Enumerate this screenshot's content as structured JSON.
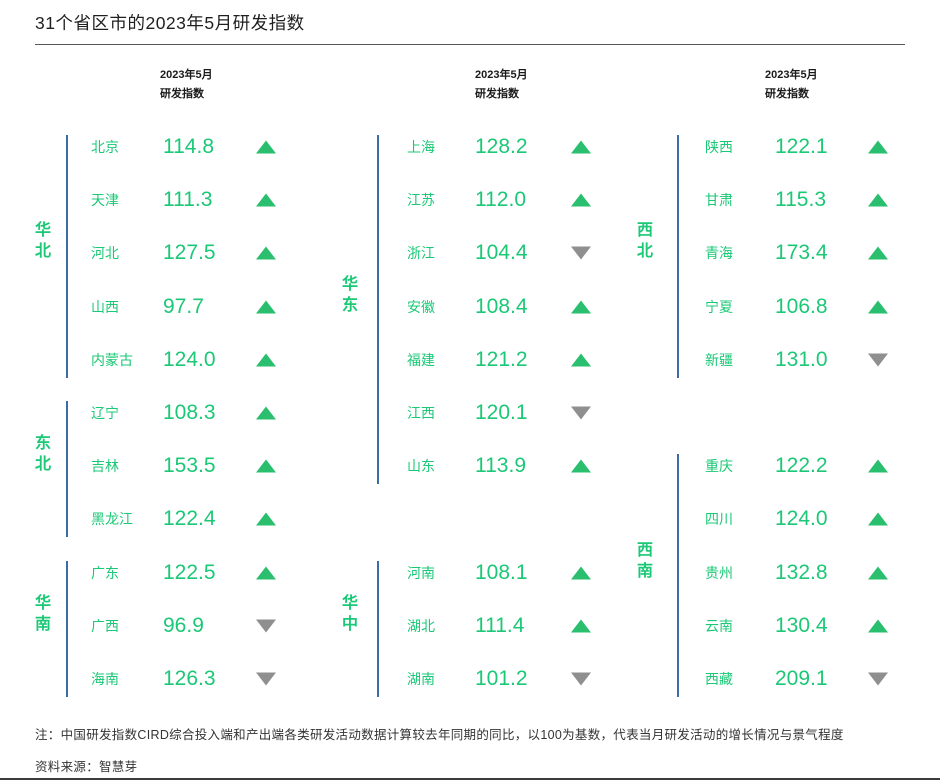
{
  "title": "31个省区市的2023年5月研发指数",
  "column_header": {
    "line1": "2023年5月",
    "line2": "研发指数"
  },
  "note": "注：中国研发指数CIRD综合投入端和产出端各类研发活动数据计算较去年同期的同比，以100为基数，代表当月研发活动的增长情况与景气程度",
  "source": "资料来源：智慧芽",
  "colors": {
    "green": "#1bc876",
    "up_arrow": "#2abf6e",
    "down_arrow": "#8f8f8f",
    "divider": "#3a6ca8"
  },
  "chart_data": {
    "type": "table",
    "title": "31个省区市的2023年5月研发指数",
    "value_column_header": "2023年5月研发指数",
    "trend_encoding": {
      "up": "绿色上三角",
      "down": "灰色下三角"
    },
    "columns": [
      {
        "groups": [
          {
            "region": "华北",
            "rows": [
              {
                "province": "北京",
                "value": "114.8",
                "trend": "up"
              },
              {
                "province": "天津",
                "value": "111.3",
                "trend": "up"
              },
              {
                "province": "河北",
                "value": "127.5",
                "trend": "up"
              },
              {
                "province": "山西",
                "value": "97.7",
                "trend": "up"
              },
              {
                "province": "内蒙古",
                "value": "124.0",
                "trend": "up"
              }
            ]
          },
          {
            "region": "东北",
            "rows": [
              {
                "province": "辽宁",
                "value": "108.3",
                "trend": "up"
              },
              {
                "province": "吉林",
                "value": "153.5",
                "trend": "up"
              },
              {
                "province": "黑龙江",
                "value": "122.4",
                "trend": "up"
              }
            ]
          },
          {
            "region": "华南",
            "rows": [
              {
                "province": "广东",
                "value": "122.5",
                "trend": "up"
              },
              {
                "province": "广西",
                "value": "96.9",
                "trend": "down"
              },
              {
                "province": "海南",
                "value": "126.3",
                "trend": "down"
              }
            ]
          }
        ]
      },
      {
        "groups": [
          {
            "region": "华东",
            "rows": [
              {
                "province": "上海",
                "value": "128.2",
                "trend": "up"
              },
              {
                "province": "江苏",
                "value": "112.0",
                "trend": "up"
              },
              {
                "province": "浙江",
                "value": "104.4",
                "trend": "down"
              },
              {
                "province": "安徽",
                "value": "108.4",
                "trend": "up"
              },
              {
                "province": "福建",
                "value": "121.2",
                "trend": "up"
              },
              {
                "province": "江西",
                "value": "120.1",
                "trend": "down"
              },
              {
                "province": "山东",
                "value": "113.9",
                "trend": "up"
              }
            ]
          },
          {
            "region": "华中",
            "rows": [
              {
                "province": "河南",
                "value": "108.1",
                "trend": "up"
              },
              {
                "province": "湖北",
                "value": "111.4",
                "trend": "up"
              },
              {
                "province": "湖南",
                "value": "101.2",
                "trend": "down"
              }
            ]
          }
        ]
      },
      {
        "groups": [
          {
            "region": "西北",
            "rows": [
              {
                "province": "陕西",
                "value": "122.1",
                "trend": "up"
              },
              {
                "province": "甘肃",
                "value": "115.3",
                "trend": "up"
              },
              {
                "province": "青海",
                "value": "173.4",
                "trend": "up"
              },
              {
                "province": "宁夏",
                "value": "106.8",
                "trend": "up"
              },
              {
                "province": "新疆",
                "value": "131.0",
                "trend": "down"
              }
            ]
          },
          {
            "region": "西南",
            "rows": [
              {
                "province": "重庆",
                "value": "122.2",
                "trend": "up"
              },
              {
                "province": "四川",
                "value": "124.0",
                "trend": "up"
              },
              {
                "province": "贵州",
                "value": "132.8",
                "trend": "up"
              },
              {
                "province": "云南",
                "value": "130.4",
                "trend": "up"
              },
              {
                "province": "西藏",
                "value": "209.1",
                "trend": "down"
              }
            ]
          }
        ]
      }
    ]
  }
}
